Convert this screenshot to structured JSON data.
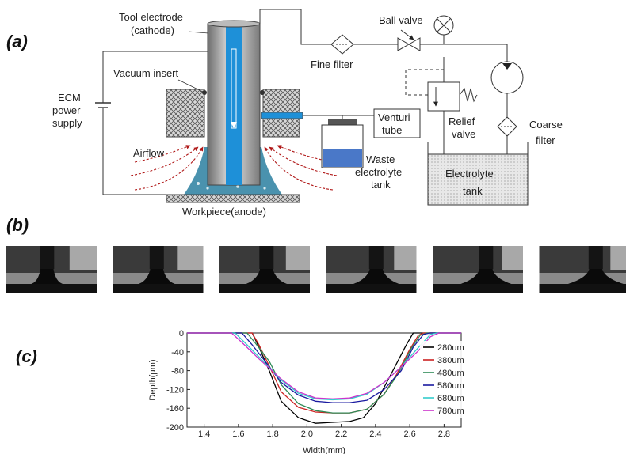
{
  "panels": {
    "a": "(a)",
    "b": "(b)",
    "c": "(c)"
  },
  "diagram": {
    "tool_electrode": "Tool electrode",
    "cathode": "(cathode)",
    "ball_valve": "Ball valve",
    "fine_filter": "Fine filter",
    "vacuum_insert": "Vacuum insert",
    "ecm_power_1": "ECM",
    "ecm_power_2": "power",
    "ecm_power_3": "supply",
    "venturi_1": "Venturi",
    "venturi_2": "tube",
    "relief_1": "Relief",
    "relief_2": "valve",
    "coarse_1": "Coarse",
    "coarse_2": "filter",
    "airflow": "Airflow",
    "waste_1": "Waste",
    "waste_2": "electrolyte",
    "waste_3": "tank",
    "electrolyte_1": "Electrolyte",
    "electrolyte_2": "tank",
    "workpiece": "Workpiece(anode)"
  },
  "photos": {
    "count": 6
  },
  "chart_data": {
    "type": "line",
    "xlabel": "Width(mm)",
    "ylabel": "Depth(μm)",
    "xlim": [
      1.3,
      2.9
    ],
    "ylim": [
      -200,
      0
    ],
    "xticks": [
      "1.4",
      "1.6",
      "1.8",
      "2.0",
      "2.2",
      "2.4",
      "2.6",
      "2.8"
    ],
    "yticks": [
      "0",
      "-40",
      "-80",
      "-120",
      "-160",
      "-200"
    ],
    "legend_position": "right",
    "series": [
      {
        "name": "280um",
        "color": "#000000",
        "x": [
          1.3,
          1.68,
          1.72,
          1.78,
          1.85,
          1.95,
          2.05,
          2.15,
          2.25,
          2.33,
          2.4,
          2.48,
          2.58,
          2.62,
          2.66,
          2.9
        ],
        "y": [
          0,
          0,
          -30,
          -80,
          -145,
          -180,
          -192,
          -190,
          -188,
          -180,
          -150,
          -95,
          -25,
          0,
          0,
          0
        ]
      },
      {
        "name": "380um",
        "color": "#cc2222",
        "x": [
          1.3,
          1.68,
          1.72,
          1.78,
          1.85,
          1.95,
          2.05,
          2.15,
          2.25,
          2.35,
          2.45,
          2.52,
          2.6,
          2.65,
          2.68,
          2.9
        ],
        "y": [
          0,
          0,
          -25,
          -70,
          -125,
          -158,
          -168,
          -170,
          -170,
          -162,
          -130,
          -90,
          -35,
          -5,
          0,
          0
        ]
      },
      {
        "name": "480um",
        "color": "#2e8b57",
        "x": [
          1.3,
          1.65,
          1.7,
          1.78,
          1.85,
          1.95,
          2.05,
          2.15,
          2.25,
          2.35,
          2.45,
          2.53,
          2.61,
          2.66,
          2.7,
          2.9
        ],
        "y": [
          0,
          0,
          -22,
          -60,
          -110,
          -150,
          -165,
          -170,
          -170,
          -162,
          -130,
          -88,
          -32,
          -5,
          0,
          0
        ]
      },
      {
        "name": "580um",
        "color": "#1a1aa0",
        "x": [
          1.3,
          1.62,
          1.68,
          1.76,
          1.85,
          1.95,
          2.05,
          2.15,
          2.25,
          2.35,
          2.45,
          2.55,
          2.62,
          2.68,
          2.72,
          2.9
        ],
        "y": [
          0,
          0,
          -25,
          -62,
          -105,
          -132,
          -145,
          -148,
          -148,
          -143,
          -120,
          -80,
          -30,
          -3,
          0,
          0
        ]
      },
      {
        "name": "680um",
        "color": "#33cccc",
        "x": [
          1.3,
          1.58,
          1.65,
          1.75,
          1.85,
          1.95,
          2.05,
          2.15,
          2.25,
          2.35,
          2.45,
          2.55,
          2.64,
          2.72,
          2.76,
          2.9
        ],
        "y": [
          0,
          0,
          -25,
          -62,
          -100,
          -128,
          -140,
          -142,
          -140,
          -130,
          -105,
          -72,
          -35,
          -3,
          0,
          0
        ]
      },
      {
        "name": "780um",
        "color": "#cc33cc",
        "x": [
          1.3,
          1.56,
          1.62,
          1.72,
          1.85,
          1.95,
          2.05,
          2.15,
          2.25,
          2.35,
          2.45,
          2.55,
          2.65,
          2.72,
          2.77,
          2.9
        ],
        "y": [
          0,
          0,
          -20,
          -55,
          -98,
          -125,
          -138,
          -140,
          -138,
          -128,
          -105,
          -72,
          -38,
          -8,
          0,
          0
        ]
      }
    ]
  }
}
